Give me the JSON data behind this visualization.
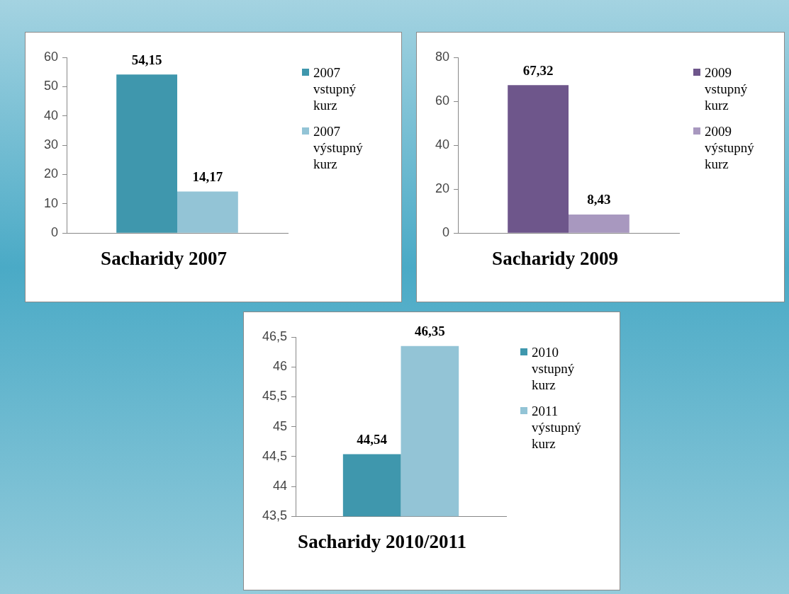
{
  "chart_data": [
    {
      "type": "bar",
      "title": "Sacharidy 2007",
      "categories": [
        null
      ],
      "series": [
        {
          "name": "2007 vstupný kurz",
          "color": "#3f97ad",
          "values": [
            54.15
          ],
          "value_labels": [
            "54,15"
          ]
        },
        {
          "name": "2007 výstupný kurz",
          "color": "#93c4d6",
          "values": [
            14.17
          ],
          "value_labels": [
            "14,17"
          ]
        }
      ],
      "ylim": [
        0,
        60
      ],
      "yticks": [
        0,
        10,
        20,
        30,
        40,
        50,
        60
      ],
      "grid": false,
      "legend": "right"
    },
    {
      "type": "bar",
      "title": "Sacharidy 2009",
      "categories": [
        null
      ],
      "series": [
        {
          "name": "2009 vstupný kurz",
          "color": "#6e568b",
          "values": [
            67.32
          ],
          "value_labels": [
            "67,32"
          ]
        },
        {
          "name": "2009 výstupný kurz",
          "color": "#a898bf",
          "values": [
            8.43
          ],
          "value_labels": [
            "8,43"
          ]
        }
      ],
      "ylim": [
        0,
        80
      ],
      "yticks": [
        0,
        20,
        40,
        60,
        80
      ],
      "grid": false,
      "legend": "right"
    },
    {
      "type": "bar",
      "title": "Sacharidy 2010/2011",
      "categories": [
        null
      ],
      "series": [
        {
          "name": "2010 vstupný kurz",
          "color": "#3f97ad",
          "values": [
            44.54
          ],
          "value_labels": [
            "44,54"
          ]
        },
        {
          "name": "2011 výstupný kurz",
          "color": "#93c4d6",
          "values": [
            46.35
          ],
          "value_labels": [
            "46,35"
          ]
        }
      ],
      "ylim": [
        43.5,
        46.5
      ],
      "yticks": [
        {
          "value": 43.5,
          "label": "43,5"
        },
        44,
        {
          "value": 44.5,
          "label": "44,5"
        },
        45,
        {
          "value": 45.5,
          "label": "45,5"
        },
        46,
        {
          "value": 46.5,
          "label": "46,5"
        }
      ],
      "grid": false,
      "legend": "right"
    }
  ]
}
